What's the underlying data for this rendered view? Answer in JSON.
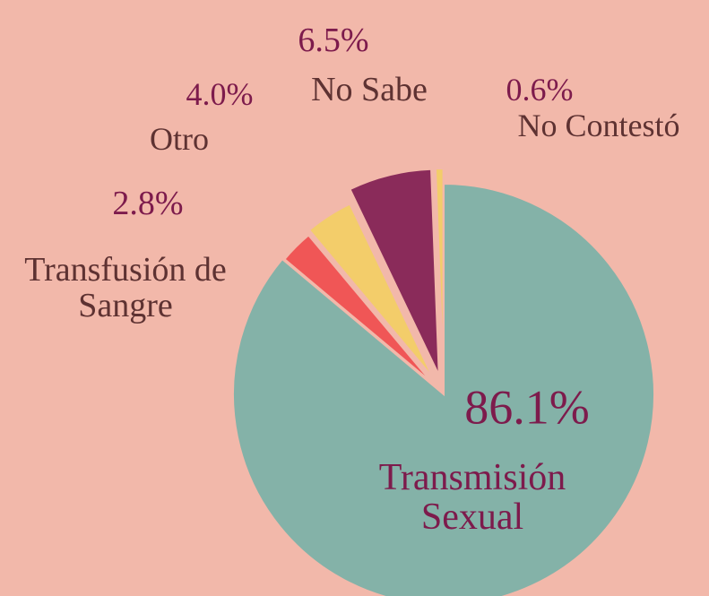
{
  "chart_data": {
    "type": "pie",
    "categories": [
      "Transmisión Sexual",
      "Transfusión de Sangre",
      "Otro",
      "No Sabe",
      "No Contestó"
    ],
    "values": [
      86.1,
      2.8,
      4.0,
      6.5,
      0.6
    ],
    "value_labels": [
      "86.1%",
      "2.8%",
      "4.0%",
      "6.5%",
      "0.6%"
    ],
    "colors": [
      "#84b2a8",
      "#f05656",
      "#f3cd6a",
      "#8a2b5a",
      "#f3cd6a"
    ]
  }
}
